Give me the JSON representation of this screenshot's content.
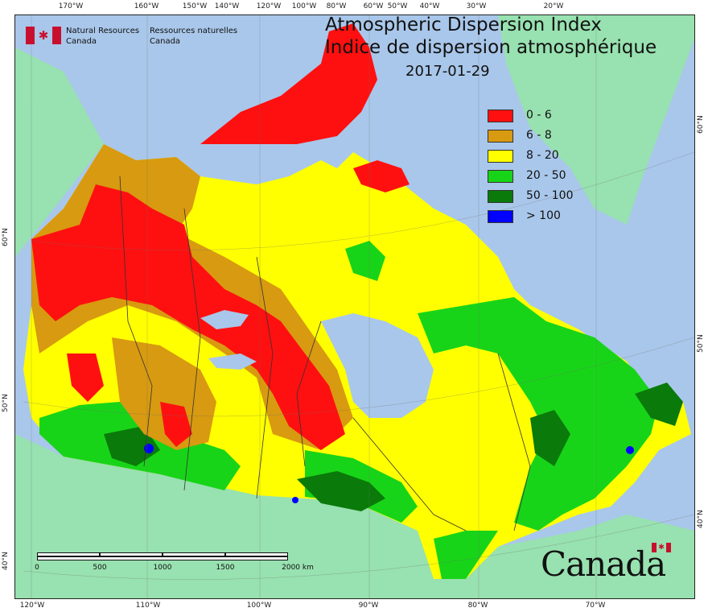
{
  "title": {
    "line1": "Atmospheric Dispersion Index",
    "line2": "Indice de dispersion atmosphérique",
    "date": "2017-01-29"
  },
  "agency": {
    "name_en_1": "Natural Resources",
    "name_en_2": "Canada",
    "name_fr_1": "Ressources naturelles",
    "name_fr_2": "Canada"
  },
  "wordmark": "Canada",
  "legend": [
    {
      "label": "0 - 6",
      "color": "#ff1010"
    },
    {
      "label": "6 - 8",
      "color": "#d89a10"
    },
    {
      "label": "8 - 20",
      "color": "#ffff00"
    },
    {
      "label": "20 - 50",
      "color": "#18d418"
    },
    {
      "label": "50 - 100",
      "color": "#0a7a0a"
    },
    {
      "label": "> 100",
      "color": "#0000ff"
    }
  ],
  "colors": {
    "ocean": "#a9c7ea",
    "land_outside": "#98e1b0"
  },
  "graticule": {
    "top": [
      "170°W",
      "160°W",
      "150°W",
      "140°W",
      "120°W",
      "100°W",
      "80°W",
      "60°W",
      "50°W",
      "40°W",
      "30°W",
      "20°W"
    ],
    "bottom": [
      "120°W",
      "110°W",
      "100°W",
      "90°W",
      "80°W",
      "70°W"
    ],
    "left": [
      "60°N",
      "50°N",
      "40°N"
    ],
    "right": [
      "60°N",
      "50°N",
      "40°N"
    ]
  },
  "scale_bar": {
    "labels": [
      "0",
      "500",
      "1000",
      "1500",
      "2000 km"
    ]
  }
}
